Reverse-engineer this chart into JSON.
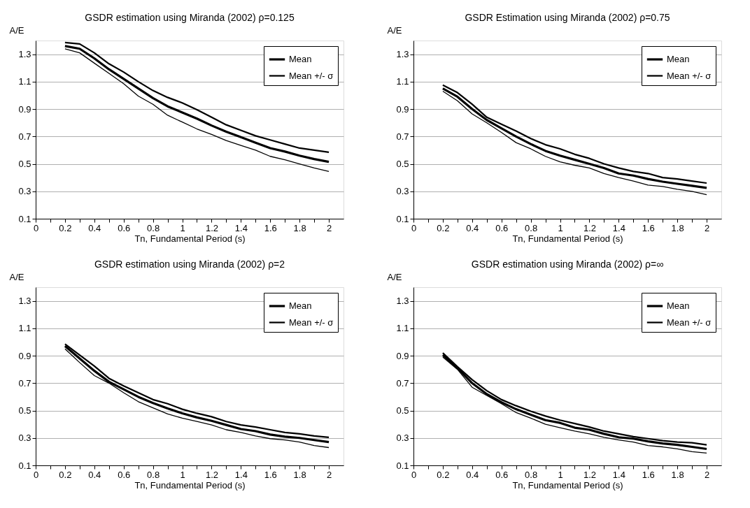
{
  "chart_data": [
    {
      "type": "line",
      "title": "GSDR estimation using Miranda (2002) ρ=0.125",
      "xlabel": "Tn, Fundamental Period (s)",
      "ylabel": "A/E",
      "x": [
        0.2,
        0.3,
        0.4,
        0.5,
        0.6,
        0.7,
        0.8,
        0.9,
        1.0,
        1.1,
        1.2,
        1.3,
        1.4,
        1.5,
        1.6,
        1.7,
        1.8,
        1.9,
        2.0
      ],
      "series": [
        {
          "name": "Mean",
          "color": "#000000",
          "values": [
            1.36,
            1.34,
            1.27,
            1.19,
            1.12,
            1.05,
            0.98,
            0.92,
            0.875,
            0.83,
            0.78,
            0.735,
            0.695,
            0.655,
            0.615,
            0.59,
            0.56,
            0.535,
            0.515
          ]
        },
        {
          "name": "Mean +/- σ",
          "color": "#000000",
          "values": [
            1.385,
            1.375,
            1.31,
            1.23,
            1.17,
            1.1,
            1.035,
            0.985,
            0.945,
            0.895,
            0.84,
            0.785,
            0.745,
            0.705,
            0.675,
            0.645,
            0.615,
            0.6,
            0.585
          ]
        },
        {
          "color": "#000000",
          "values": [
            1.34,
            1.31,
            1.235,
            1.16,
            1.085,
            0.995,
            0.935,
            0.855,
            0.805,
            0.755,
            0.715,
            0.67,
            0.635,
            0.6,
            0.555,
            0.53,
            0.5,
            0.47,
            0.445
          ]
        }
      ],
      "xlim": [
        0,
        2.1
      ],
      "ylim": [
        0.1,
        1.4
      ],
      "xticks": [
        0,
        {
          "value": 0.1,
          "label": null
        },
        0.2,
        {
          "value": 0.3,
          "label": null
        },
        0.4,
        {
          "value": 0.5,
          "label": null
        },
        0.6,
        {
          "value": 0.7,
          "label": null
        },
        0.8,
        {
          "value": 0.9,
          "label": null
        },
        1,
        {
          "value": 1.1,
          "label": null
        },
        1.2,
        {
          "value": 1.3,
          "label": null
        },
        1.4,
        {
          "value": 1.5,
          "label": null
        },
        1.6,
        {
          "value": 1.7,
          "label": null
        },
        1.8,
        {
          "value": 1.9,
          "label": null
        },
        2
      ],
      "yticks": [
        0.1,
        0.3,
        0.5,
        0.7,
        0.9,
        1.1,
        1.3
      ],
      "grid": "y",
      "legend": "top right",
      "marker": "none",
      "line_style": "solid"
    },
    {
      "type": "line",
      "title": "GSDR Estimation using Miranda (2002) ρ=0.75",
      "xlabel": "Tn, Fundamental Period (s)",
      "ylabel": "A/E",
      "x": [
        0.2,
        0.3,
        0.4,
        0.5,
        0.6,
        0.7,
        0.8,
        0.9,
        1.0,
        1.1,
        1.2,
        1.3,
        1.4,
        1.5,
        1.6,
        1.7,
        1.8,
        1.9,
        2.0
      ],
      "series": [
        {
          "name": "Mean",
          "color": "#000000",
          "values": [
            1.05,
            0.99,
            0.9,
            0.82,
            0.76,
            0.7,
            0.645,
            0.595,
            0.56,
            0.53,
            0.5,
            0.47,
            0.43,
            0.415,
            0.39,
            0.37,
            0.355,
            0.34,
            0.325
          ]
        },
        {
          "name": "Mean +/- σ",
          "color": "#000000",
          "values": [
            1.075,
            1.02,
            0.935,
            0.84,
            0.79,
            0.74,
            0.685,
            0.64,
            0.61,
            0.57,
            0.54,
            0.5,
            0.47,
            0.445,
            0.43,
            0.4,
            0.39,
            0.375,
            0.36
          ]
        },
        {
          "color": "#000000",
          "values": [
            1.03,
            0.96,
            0.865,
            0.8,
            0.73,
            0.655,
            0.61,
            0.555,
            0.515,
            0.49,
            0.47,
            0.43,
            0.4,
            0.375,
            0.345,
            0.335,
            0.315,
            0.3,
            0.275
          ]
        }
      ],
      "xlim": [
        0,
        2.1
      ],
      "ylim": [
        0.1,
        1.4
      ],
      "xticks": [
        0,
        {
          "value": 0.1,
          "label": null
        },
        0.2,
        {
          "value": 0.3,
          "label": null
        },
        0.4,
        {
          "value": 0.5,
          "label": null
        },
        0.6,
        {
          "value": 0.7,
          "label": null
        },
        0.8,
        {
          "value": 0.9,
          "label": null
        },
        1,
        {
          "value": 1.1,
          "label": null
        },
        1.2,
        {
          "value": 1.3,
          "label": null
        },
        1.4,
        {
          "value": 1.5,
          "label": null
        },
        1.6,
        {
          "value": 1.7,
          "label": null
        },
        1.8,
        {
          "value": 1.9,
          "label": null
        },
        2
      ],
      "yticks": [
        0.1,
        0.3,
        0.5,
        0.7,
        0.9,
        1.1,
        1.3
      ],
      "grid": "y",
      "legend": "top right",
      "marker": "none",
      "line_style": "solid"
    },
    {
      "type": "line",
      "title": "GSDR estimation using Miranda (2002) ρ=2",
      "xlabel": "Tn, Fundamental Period (s)",
      "ylabel": "A/E",
      "x": [
        0.2,
        0.3,
        0.4,
        0.5,
        0.6,
        0.7,
        0.8,
        0.9,
        1.0,
        1.1,
        1.2,
        1.3,
        1.4,
        1.5,
        1.6,
        1.7,
        1.8,
        1.9,
        2.0
      ],
      "series": [
        {
          "name": "Mean",
          "color": "#000000",
          "values": [
            0.97,
            0.88,
            0.79,
            0.71,
            0.655,
            0.6,
            0.555,
            0.515,
            0.48,
            0.45,
            0.425,
            0.395,
            0.365,
            0.35,
            0.325,
            0.31,
            0.3,
            0.285,
            0.27
          ]
        },
        {
          "name": "Mean +/- σ",
          "color": "#000000",
          "values": [
            0.985,
            0.905,
            0.825,
            0.735,
            0.68,
            0.63,
            0.58,
            0.55,
            0.51,
            0.48,
            0.455,
            0.42,
            0.395,
            0.38,
            0.36,
            0.34,
            0.33,
            0.315,
            0.305
          ]
        },
        {
          "color": "#000000",
          "values": [
            0.95,
            0.85,
            0.755,
            0.7,
            0.63,
            0.565,
            0.52,
            0.475,
            0.445,
            0.42,
            0.395,
            0.36,
            0.34,
            0.315,
            0.295,
            0.285,
            0.27,
            0.245,
            0.23
          ]
        }
      ],
      "xlim": [
        0,
        2.1
      ],
      "ylim": [
        0.1,
        1.4
      ],
      "xticks": [
        0,
        {
          "value": 0.1,
          "label": null
        },
        0.2,
        {
          "value": 0.3,
          "label": null
        },
        0.4,
        {
          "value": 0.5,
          "label": null
        },
        0.6,
        {
          "value": 0.7,
          "label": null
        },
        0.8,
        {
          "value": 0.9,
          "label": null
        },
        1,
        {
          "value": 1.1,
          "label": null
        },
        1.2,
        {
          "value": 1.3,
          "label": null
        },
        1.4,
        {
          "value": 1.5,
          "label": null
        },
        1.6,
        {
          "value": 1.7,
          "label": null
        },
        1.8,
        {
          "value": 1.9,
          "label": null
        },
        2
      ],
      "yticks": [
        0.1,
        0.3,
        0.5,
        0.7,
        0.9,
        1.1,
        1.3
      ],
      "grid": "y",
      "legend": "top right",
      "marker": "none",
      "line_style": "solid"
    },
    {
      "type": "line",
      "title": "GSDR estimation using Miranda (2002) ρ=∞",
      "xlabel": "Tn, Fundamental Period (s)",
      "ylabel": "A/E",
      "x": [
        0.2,
        0.3,
        0.4,
        0.5,
        0.6,
        0.7,
        0.8,
        0.9,
        1.0,
        1.1,
        1.2,
        1.3,
        1.4,
        1.5,
        1.6,
        1.7,
        1.8,
        1.9,
        2.0
      ],
      "series": [
        {
          "name": "Mean",
          "color": "#000000",
          "values": [
            0.905,
            0.81,
            0.7,
            0.62,
            0.56,
            0.51,
            0.47,
            0.43,
            0.41,
            0.375,
            0.36,
            0.33,
            0.305,
            0.295,
            0.275,
            0.26,
            0.25,
            0.235,
            0.22
          ]
        },
        {
          "name": "Mean +/- σ",
          "color": "#000000",
          "values": [
            0.92,
            0.82,
            0.725,
            0.645,
            0.58,
            0.535,
            0.495,
            0.46,
            0.43,
            0.405,
            0.38,
            0.35,
            0.33,
            0.31,
            0.295,
            0.28,
            0.27,
            0.265,
            0.25
          ]
        },
        {
          "color": "#000000",
          "values": [
            0.89,
            0.8,
            0.67,
            0.61,
            0.55,
            0.485,
            0.445,
            0.4,
            0.375,
            0.35,
            0.33,
            0.305,
            0.285,
            0.27,
            0.245,
            0.235,
            0.22,
            0.2,
            0.19
          ]
        }
      ],
      "xlim": [
        0,
        2.1
      ],
      "ylim": [
        0.1,
        1.4
      ],
      "xticks": [
        0,
        {
          "value": 0.1,
          "label": null
        },
        0.2,
        {
          "value": 0.3,
          "label": null
        },
        0.4,
        {
          "value": 0.5,
          "label": null
        },
        0.6,
        {
          "value": 0.7,
          "label": null
        },
        0.8,
        {
          "value": 0.9,
          "label": null
        },
        1,
        {
          "value": 1.1,
          "label": null
        },
        1.2,
        {
          "value": 1.3,
          "label": null
        },
        1.4,
        {
          "value": 1.5,
          "label": null
        },
        1.6,
        {
          "value": 1.7,
          "label": null
        },
        1.8,
        {
          "value": 1.9,
          "label": null
        },
        2
      ],
      "yticks": [
        0.1,
        0.3,
        0.5,
        0.7,
        0.9,
        1.1,
        1.3
      ],
      "grid": "y",
      "legend": "top right",
      "marker": "none",
      "line_style": "solid"
    }
  ]
}
